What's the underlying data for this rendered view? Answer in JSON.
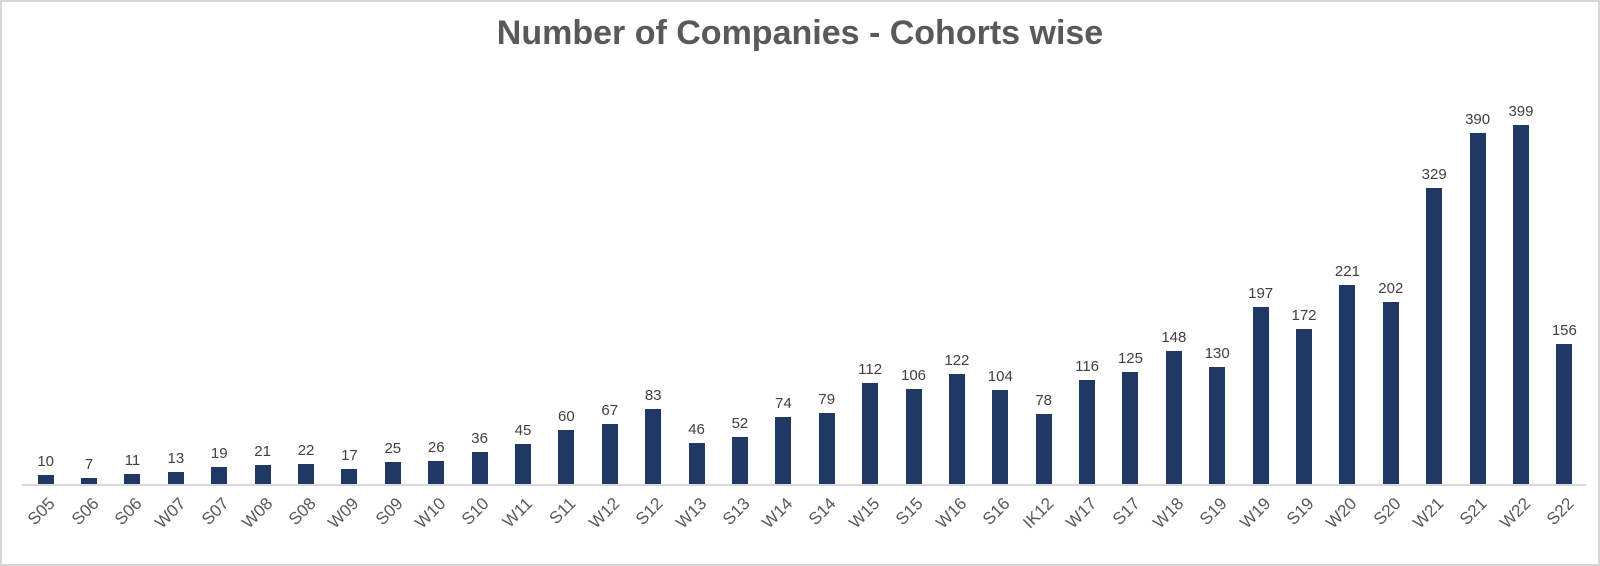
{
  "chart_data": {
    "type": "bar",
    "title": "Number of Companies - Cohorts wise",
    "categories": [
      "S05",
      "S06",
      "S06",
      "W07",
      "S07",
      "W08",
      "S08",
      "W09",
      "S09",
      "W10",
      "S10",
      "W11",
      "S11",
      "W12",
      "S12",
      "W13",
      "S13",
      "W14",
      "S14",
      "W15",
      "S15",
      "W16",
      "S16",
      "IK12",
      "W17",
      "S17",
      "W18",
      "S19",
      "W19",
      "S19",
      "W20",
      "S20",
      "W21",
      "S21",
      "W22",
      "S22"
    ],
    "values": [
      10,
      7,
      11,
      13,
      19,
      21,
      22,
      17,
      25,
      26,
      36,
      45,
      60,
      67,
      83,
      46,
      52,
      74,
      79,
      112,
      106,
      122,
      104,
      78,
      116,
      125,
      148,
      130,
      197,
      172,
      221,
      202,
      329,
      390,
      399,
      156
    ],
    "xlabel": "",
    "ylabel": "",
    "data_labels": true,
    "grid": false,
    "legend": false,
    "y_axis_visible": false,
    "x_labels_rotated_degrees": 45,
    "colors": {
      "bar": "#1F3864",
      "title_text": "#595959",
      "value_label_text": "#404040",
      "axis_label_text": "#595959",
      "axis_line": "#D9D9D9",
      "frame_border": "#D6D6D6",
      "background": "#FFFFFF"
    }
  }
}
